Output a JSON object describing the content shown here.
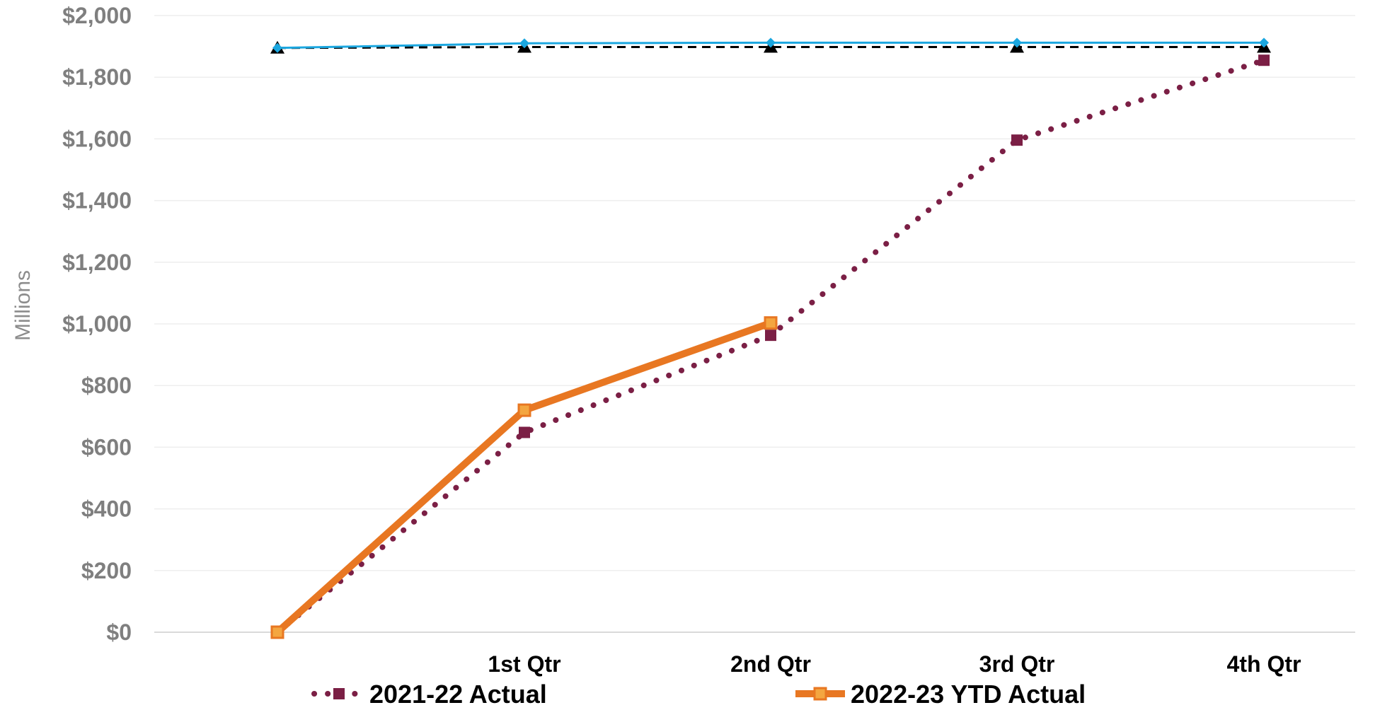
{
  "chart_data": {
    "type": "line",
    "title": "",
    "xlabel": "",
    "ylabel": "Millions",
    "ylim": [
      0,
      2000
    ],
    "yticks": [
      0,
      200,
      400,
      600,
      800,
      1000,
      1200,
      1400,
      1600,
      1800,
      2000
    ],
    "ytick_labels": [
      "$0",
      "$200",
      "$400",
      "$600",
      "$800",
      "$1,000",
      "$1,200",
      "$1,400",
      "$1,600",
      "$1,800",
      "$2,000"
    ],
    "categories": [
      "",
      "1st Qtr",
      "2nd Qtr",
      "3rd Qtr",
      "4th Qtr"
    ],
    "grid": true,
    "legend_position": "bottom",
    "series": [
      {
        "name": "2021-22 Actual",
        "values": [
          0,
          648,
          963,
          1596,
          1855
        ],
        "color": "#7b1f45",
        "style": "dotted",
        "marker": "square",
        "in_legend": true
      },
      {
        "name": "2022-23 YTD Actual",
        "values": [
          0,
          720,
          1003,
          null,
          null
        ],
        "color": "#e87722",
        "style": "solid-thick",
        "marker": "square-open",
        "in_legend": true
      },
      {
        "name": "",
        "values": [
          1895,
          1898,
          1898,
          1898,
          1898
        ],
        "color": "#000000",
        "style": "dashed",
        "marker": "triangle",
        "in_legend": false
      },
      {
        "name": "",
        "values": [
          1895,
          1910,
          1912,
          1912,
          1912
        ],
        "color": "#1ba7e0",
        "style": "solid",
        "marker": "diamond",
        "in_legend": false
      }
    ]
  }
}
